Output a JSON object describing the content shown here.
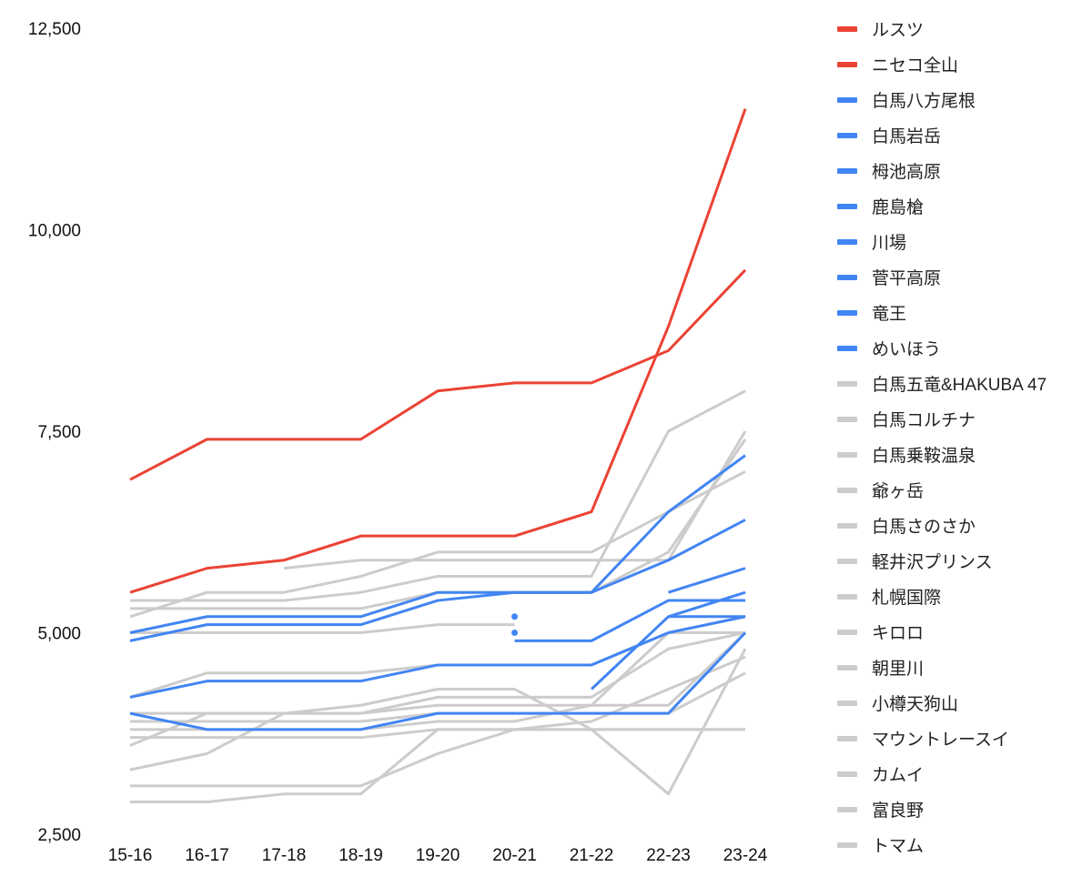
{
  "chart_data": {
    "type": "line",
    "title": "",
    "xlabel": "",
    "ylabel": "",
    "ylim": [
      2500,
      12500
    ],
    "yticks": [
      "2,500",
      "5,000",
      "7,500",
      "10,000",
      "12,500"
    ],
    "ytick_values": [
      2500,
      5000,
      7500,
      10000,
      12500
    ],
    "categories": [
      "15-16",
      "16-17",
      "17-18",
      "18-19",
      "19-20",
      "20-21",
      "21-22",
      "22-23",
      "23-24"
    ],
    "legend_position": "right",
    "grid": false,
    "colors": {
      "red": "#EA4335",
      "blue": "#4285F4",
      "gray": "#CCCCCC"
    },
    "series": [
      {
        "name": "ルスツ",
        "color": "#EA4335",
        "values": [
          6900,
          7400,
          7400,
          7400,
          8000,
          8100,
          8100,
          8500,
          9500
        ]
      },
      {
        "name": "ニセコ全山",
        "color": "#EA4335",
        "values": [
          5500,
          5800,
          5900,
          6200,
          6200,
          6200,
          6500,
          8800,
          11500
        ]
      },
      {
        "name": "白馬八方尾根",
        "color": "#4285F4",
        "values": [
          5000,
          5200,
          5200,
          5200,
          5500,
          5500,
          5500,
          6500,
          7200
        ]
      },
      {
        "name": "白馬岩岳",
        "color": "#4285F4",
        "values": [
          4900,
          5100,
          5100,
          5100,
          5400,
          5500,
          5500,
          5900,
          6400
        ]
      },
      {
        "name": "栂池高原",
        "color": "#4285F4",
        "values": [
          null,
          null,
          null,
          null,
          null,
          5200,
          null,
          5500,
          5800
        ]
      },
      {
        "name": "鹿島槍",
        "color": "#4285F4",
        "values": [
          null,
          null,
          null,
          null,
          null,
          4900,
          4900,
          5400,
          5400
        ]
      },
      {
        "name": "川場",
        "color": "#4285F4",
        "values": [
          null,
          null,
          null,
          null,
          null,
          5000,
          null,
          5200,
          5200
        ]
      },
      {
        "name": "菅平高原",
        "color": "#4285F4",
        "values": [
          4200,
          4400,
          4400,
          4400,
          4600,
          4600,
          4600,
          5000,
          5200
        ]
      },
      {
        "name": "竜王",
        "color": "#4285F4",
        "values": [
          null,
          null,
          null,
          null,
          null,
          null,
          4300,
          5200,
          5500
        ]
      },
      {
        "name": "めいほう",
        "color": "#4285F4",
        "values": [
          4000,
          3800,
          3800,
          3800,
          4000,
          4000,
          4000,
          4000,
          5000
        ]
      },
      {
        "name": "白馬五竜&HAKUBA 47",
        "color": "#CCCCCC",
        "values": [
          5200,
          5500,
          5500,
          5700,
          6000,
          6000,
          6000,
          6500,
          7000
        ]
      },
      {
        "name": "白馬コルチナ",
        "color": "#CCCCCC",
        "values": [
          null,
          null,
          5800,
          5900,
          5900,
          5900,
          5900,
          5900,
          7500
        ]
      },
      {
        "name": "白馬乗鞍温泉",
        "color": "#CCCCCC",
        "values": [
          5400,
          5400,
          5400,
          5500,
          5700,
          5700,
          5700,
          7500,
          8000
        ]
      },
      {
        "name": "爺ヶ岳",
        "color": "#CCCCCC",
        "values": [
          5300,
          5300,
          5300,
          5300,
          5500,
          5500,
          5500,
          6000,
          7400
        ]
      },
      {
        "name": "白馬さのさか",
        "color": "#CCCCCC",
        "values": [
          5000,
          5000,
          5000,
          5000,
          5100,
          5100,
          null,
          null,
          null
        ]
      },
      {
        "name": "軽井沢プリンス",
        "color": "#CCCCCC",
        "values": [
          4200,
          4500,
          4500,
          4500,
          4600,
          4600,
          4600,
          5000,
          5200
        ]
      },
      {
        "name": "札幌国際",
        "color": "#CCCCCC",
        "values": [
          3600,
          4000,
          4000,
          4000,
          4200,
          4200,
          4200,
          4800,
          5000
        ]
      },
      {
        "name": "キロロ",
        "color": "#CCCCCC",
        "values": [
          3300,
          3500,
          4000,
          4100,
          4300,
          4300,
          3800,
          3000,
          4800
        ]
      },
      {
        "name": "朝里川",
        "color": "#CCCCCC",
        "values": [
          3900,
          3900,
          3900,
          3900,
          4000,
          4000,
          4000,
          4000,
          4500
        ]
      },
      {
        "name": "小樽天狗山",
        "color": "#CCCCCC",
        "values": [
          3800,
          3800,
          3800,
          3800,
          3900,
          3900,
          4100,
          5000,
          5000
        ]
      },
      {
        "name": "マウントレースイ",
        "color": "#CCCCCC",
        "values": [
          3700,
          3700,
          3700,
          3700,
          3800,
          3800,
          3800,
          3800,
          3800
        ]
      },
      {
        "name": "カムイ",
        "color": "#CCCCCC",
        "values": [
          3100,
          3100,
          3100,
          3100,
          3500,
          3800,
          3900,
          4300,
          4700
        ]
      },
      {
        "name": "富良野",
        "color": "#CCCCCC",
        "values": [
          2900,
          2900,
          3000,
          3000,
          3800,
          3800,
          3800,
          3800,
          3800
        ]
      },
      {
        "name": "トマム",
        "color": "#CCCCCC",
        "values": [
          4000,
          4000,
          4000,
          4000,
          4100,
          4100,
          4100,
          4100,
          5000
        ]
      }
    ]
  }
}
